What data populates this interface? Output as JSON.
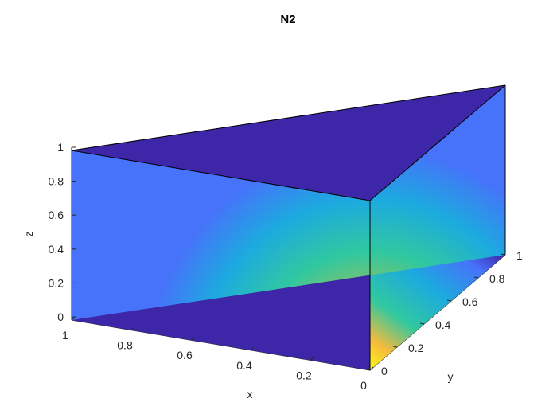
{
  "chart_data": {
    "type": "surface3d",
    "title": "N2",
    "xlabel": "x",
    "ylabel": "y",
    "zlabel": "z",
    "xlim": [
      0,
      1
    ],
    "ylim": [
      0,
      1
    ],
    "zlim": [
      0,
      1
    ],
    "xticks": [
      0,
      0.2,
      0.4,
      0.6,
      0.8,
      1
    ],
    "xtick_labels": [
      "0",
      "0.2",
      "0.4",
      "0.6",
      "0.8",
      "1"
    ],
    "yticks": [
      0,
      0.2,
      0.4,
      0.6,
      0.8,
      1
    ],
    "ytick_labels": [
      "0",
      "0.2",
      "0.4",
      "0.6",
      "0.8",
      "1"
    ],
    "zticks": [
      0,
      0.2,
      0.4,
      0.6,
      0.8,
      1
    ],
    "ztick_labels": [
      "0",
      "0.2",
      "0.4",
      "0.6",
      "0.8",
      "1"
    ],
    "colormap": "parula",
    "colormap_stops": [
      "#3e26a8",
      "#4772fa",
      "#1caadf",
      "#30c8a0",
      "#a4be55",
      "#f6bb3c",
      "#f9fb15"
    ],
    "faces": [
      {
        "name": "face-y0",
        "vertices": [
          [
            0,
            0,
            0
          ],
          [
            1,
            0,
            0
          ],
          [
            1,
            0,
            1
          ],
          [
            0,
            0,
            1
          ]
        ],
        "max_value": 0
      },
      {
        "name": "face-x0",
        "vertices": [
          [
            0,
            0,
            0
          ],
          [
            0,
            1,
            0
          ],
          [
            0,
            1,
            1
          ],
          [
            0,
            0,
            1
          ]
        ],
        "max_value": 1
      },
      {
        "name": "face-diagonal",
        "vertices": [
          [
            1,
            0,
            0
          ],
          [
            0,
            1,
            0
          ],
          [
            0,
            1,
            1
          ],
          [
            1,
            0,
            1
          ]
        ],
        "max_value": 1
      },
      {
        "name": "face-top",
        "vertices": [
          [
            0,
            0,
            1
          ],
          [
            1,
            0,
            1
          ],
          [
            0,
            1,
            1
          ]
        ],
        "max_value": 0
      }
    ]
  }
}
